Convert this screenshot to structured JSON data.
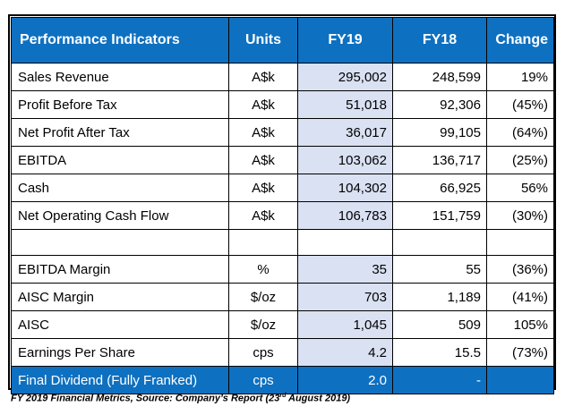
{
  "table": {
    "headers": [
      "Performance Indicators",
      "Units",
      "FY19",
      "FY18",
      "Change"
    ],
    "rows": [
      {
        "label": "Sales Revenue",
        "unit": "A$k",
        "fy19": "295,002",
        "fy18": "248,599",
        "change": "19%"
      },
      {
        "label": "Profit Before Tax",
        "unit": "A$k",
        "fy19": "51,018",
        "fy18": "92,306",
        "change": "(45%)"
      },
      {
        "label": "Net Profit After Tax",
        "unit": "A$k",
        "fy19": "36,017",
        "fy18": "99,105",
        "change": "(64%)"
      },
      {
        "label": "EBITDA",
        "unit": "A$k",
        "fy19": "103,062",
        "fy18": "136,717",
        "change": "(25%)"
      },
      {
        "label": "Cash",
        "unit": "A$k",
        "fy19": "104,302",
        "fy18": "66,925",
        "change": "56%"
      },
      {
        "label": "Net Operating Cash Flow",
        "unit": "A$k",
        "fy19": "106,783",
        "fy18": "151,759",
        "change": "(30%)"
      }
    ],
    "rows2": [
      {
        "label": "EBITDA Margin",
        "unit": "%",
        "fy19": "35",
        "fy18": "55",
        "change": "(36%)"
      },
      {
        "label": "AISC Margin",
        "unit": "$/oz",
        "fy19": "703",
        "fy18": "1,189",
        "change": "(41%)"
      },
      {
        "label": "AISC",
        "unit": "$/oz",
        "fy19": "1,045",
        "fy18": "509",
        "change": "105%"
      },
      {
        "label": "Earnings Per Share",
        "unit": "cps",
        "fy19": "4.2",
        "fy18": "15.5",
        "change": "(73%)"
      }
    ],
    "footer": {
      "label": "Final Dividend (Fully Franked)",
      "unit": "cps",
      "fy19": "2.0",
      "fy18": "-",
      "change": ""
    }
  },
  "caption": {
    "before": "FY 2019 Financial Metrics, Source: Company’s Report (23",
    "sup": "rd",
    "after": " August 2019)"
  },
  "colors": {
    "header_blue": "#0e70c0",
    "fy19_shade": "#d9e1f2"
  }
}
